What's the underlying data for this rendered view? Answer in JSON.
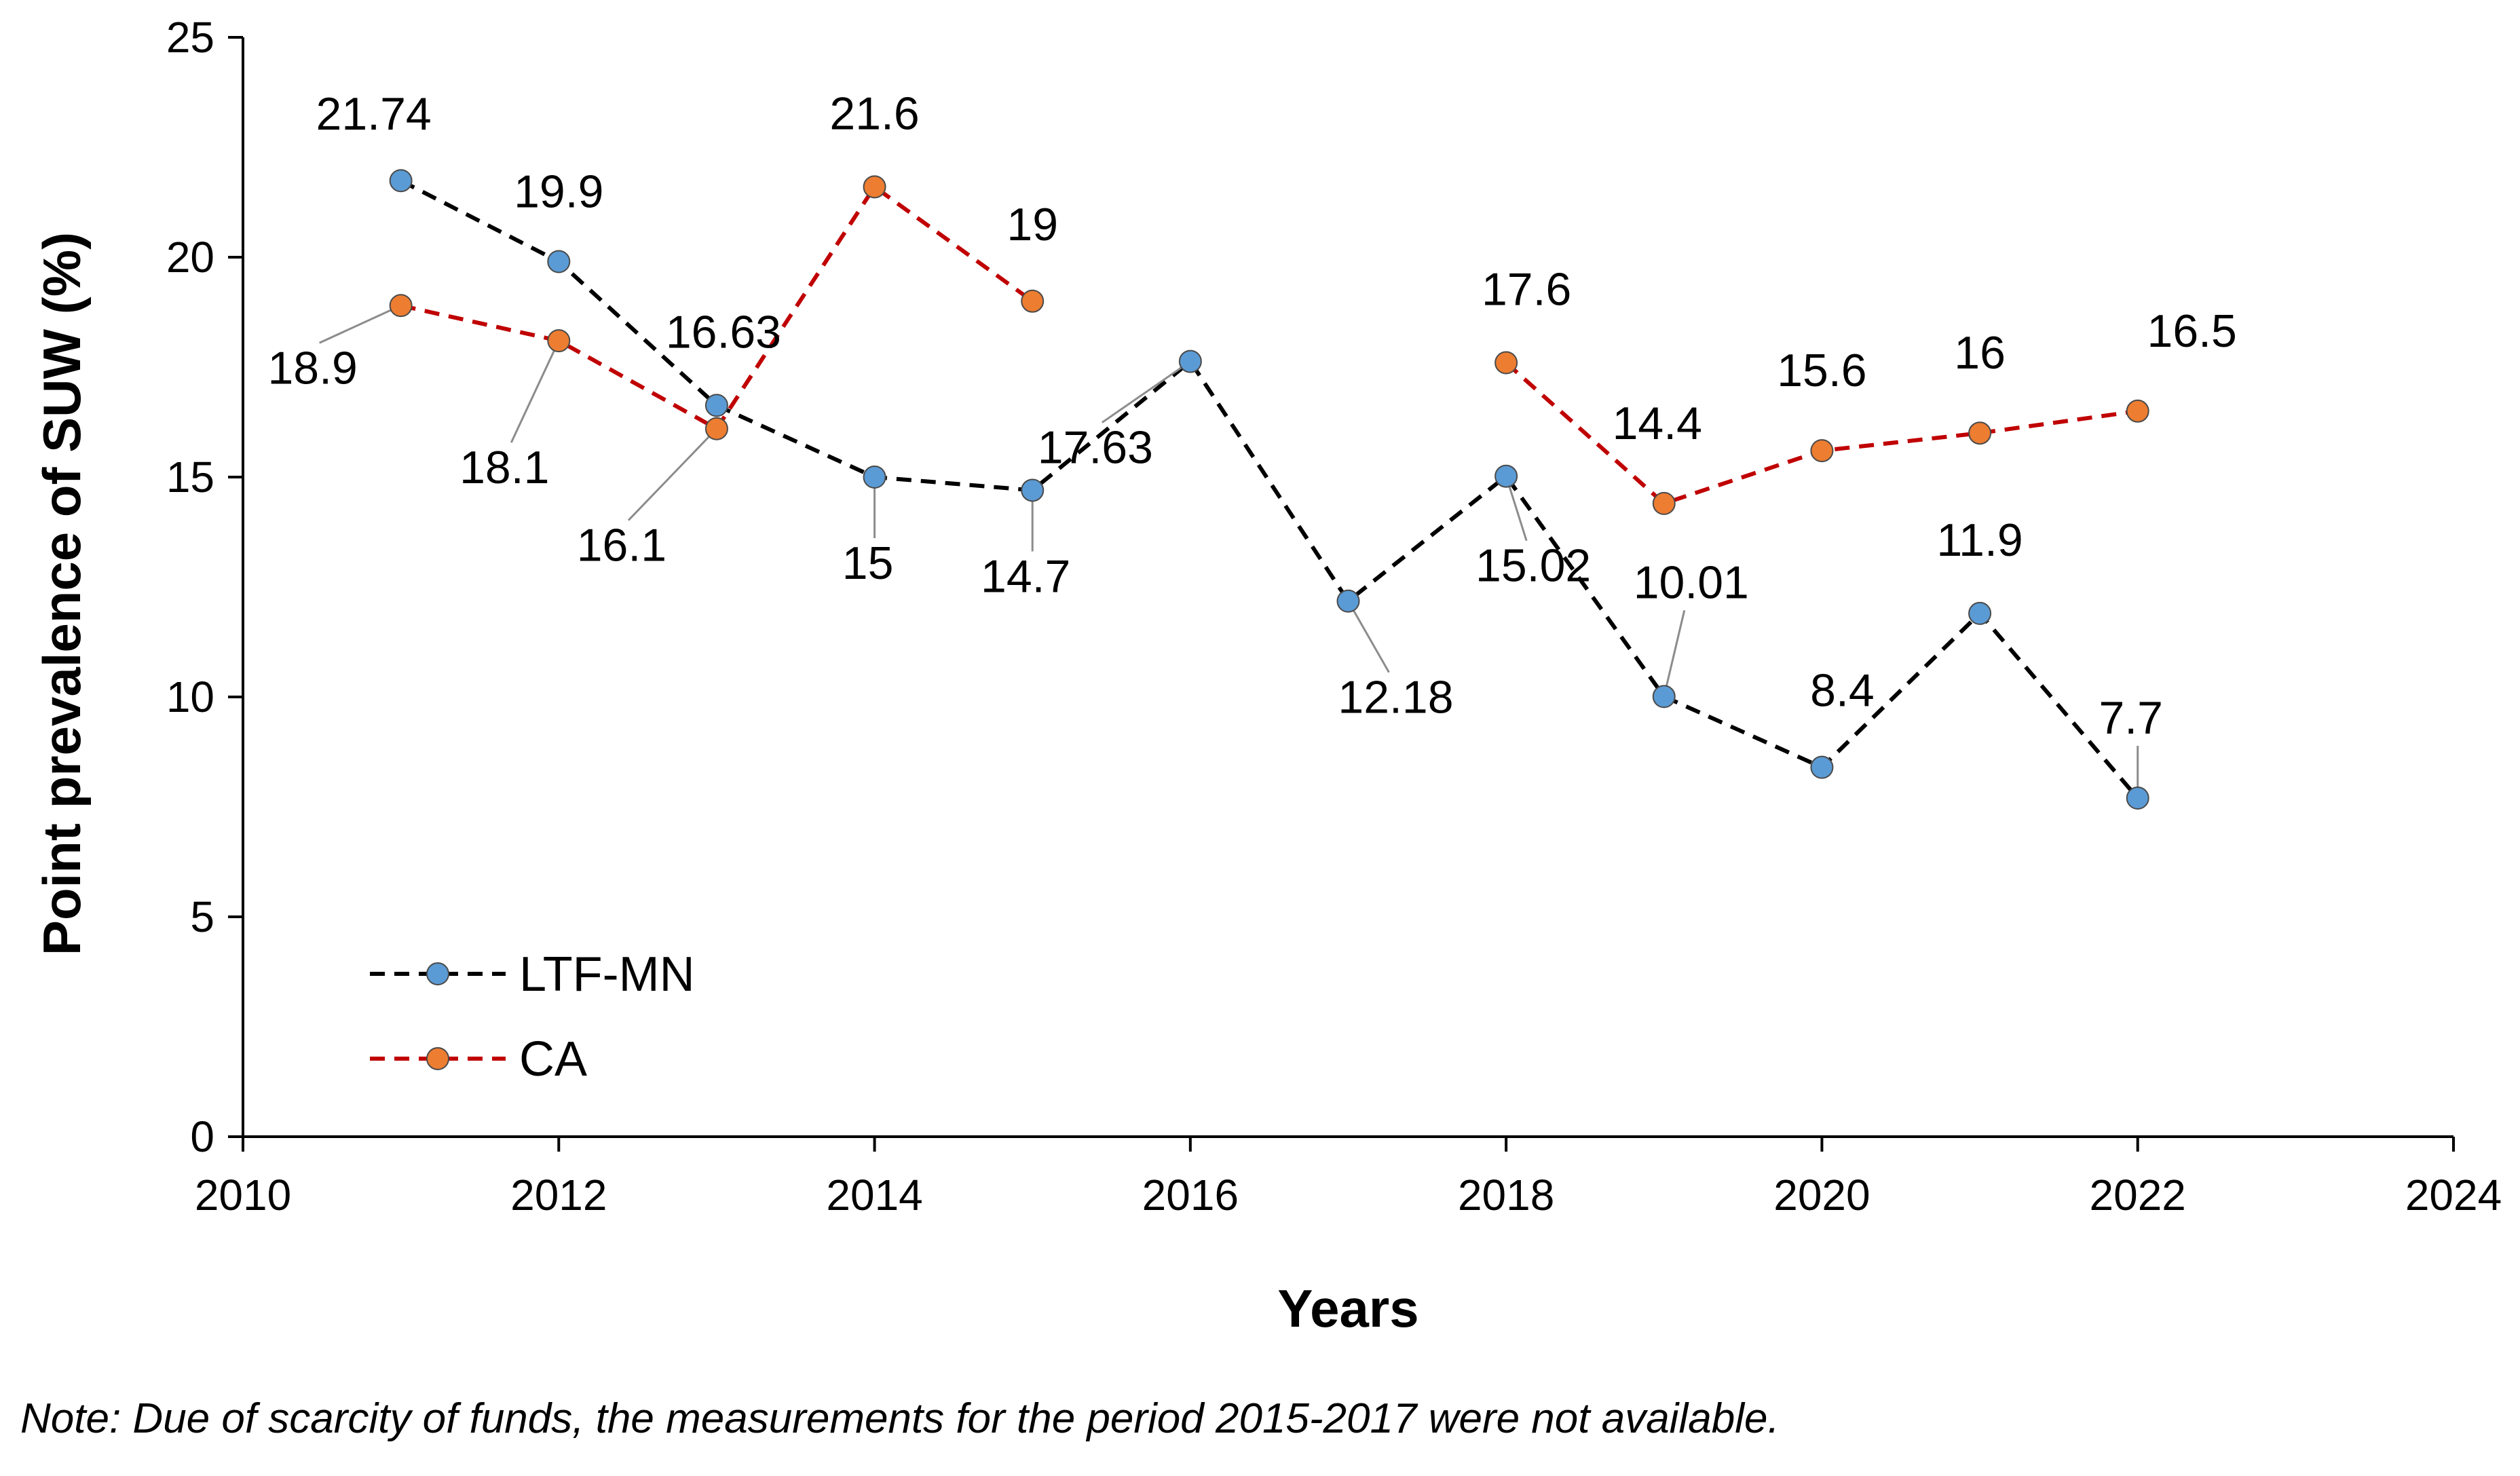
{
  "chart_data": {
    "type": "line",
    "title": "",
    "xlabel": "Years",
    "ylabel": "Point prevalence of SUW (%)",
    "xlim": [
      2010,
      2024
    ],
    "ylim": [
      0,
      25
    ],
    "x_ticks": [
      2010,
      2012,
      2014,
      2016,
      2018,
      2020,
      2022,
      2024
    ],
    "y_ticks": [
      0,
      5,
      10,
      15,
      20,
      25
    ],
    "grid": false,
    "legend_position": "bottom-left",
    "series": [
      {
        "name": "LTF-MN",
        "line_color": "#000000",
        "marker_color": "#5B9BD5",
        "segments": [
          [
            {
              "x": 2011,
              "y": 21.74,
              "label": "21.74"
            },
            {
              "x": 2012,
              "y": 19.9,
              "label": "19.9"
            },
            {
              "x": 2013,
              "y": 16.63,
              "label": "16.63"
            },
            {
              "x": 2014,
              "y": 15,
              "label": "15"
            },
            {
              "x": 2015,
              "y": 14.7,
              "label": "14.7"
            },
            {
              "x": 2016,
              "y": 17.63,
              "label": "17.63"
            },
            {
              "x": 2017,
              "y": 12.18,
              "label": "12.18"
            },
            {
              "x": 2018,
              "y": 15.02,
              "label": "15.02"
            },
            {
              "x": 2019,
              "y": 10.01,
              "label": "10.01"
            },
            {
              "x": 2020,
              "y": 8.4,
              "label": "8.4"
            },
            {
              "x": 2021,
              "y": 11.9,
              "label": "11.9"
            },
            {
              "x": 2022,
              "y": 7.7,
              "label": "7.7"
            }
          ]
        ]
      },
      {
        "name": "CA",
        "line_color": "#C00000",
        "marker_color": "#ED7D31",
        "segments": [
          [
            {
              "x": 2011,
              "y": 18.9,
              "label": "18.9"
            },
            {
              "x": 2012,
              "y": 18.1,
              "label": "18.1"
            },
            {
              "x": 2013,
              "y": 16.1,
              "label": "16.1"
            },
            {
              "x": 2014,
              "y": 21.6,
              "label": "21.6"
            },
            {
              "x": 2015,
              "y": 19,
              "label": "19"
            }
          ],
          [
            {
              "x": 2018,
              "y": 17.6,
              "label": "17.6"
            },
            {
              "x": 2019,
              "y": 14.4,
              "label": "14.4"
            },
            {
              "x": 2020,
              "y": 15.6,
              "label": "15.6"
            },
            {
              "x": 2021,
              "y": 16,
              "label": "16"
            },
            {
              "x": 2022,
              "y": 16.5,
              "label": "16.5"
            }
          ]
        ]
      }
    ],
    "note": "Note: Due of scarcity of funds, the measurements for the period 2015-2017 were not available."
  }
}
